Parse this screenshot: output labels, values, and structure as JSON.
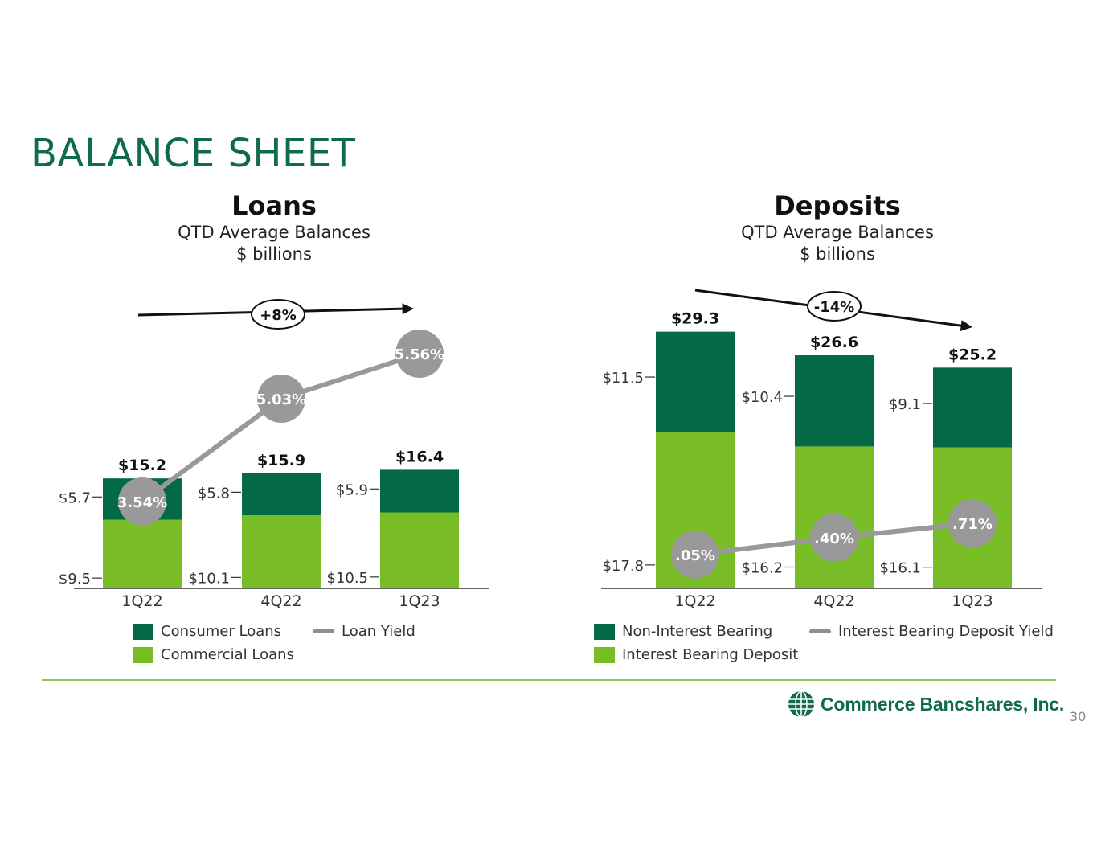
{
  "page": {
    "title": "BALANCE SHEET",
    "page_number": "30",
    "brand": "Commerce Bancshares, Inc."
  },
  "colors": {
    "title_green": "#0f6b48",
    "dark_green": "#046a45",
    "light_green": "#78bd25",
    "yield_gray": "#999999",
    "rule_green": "#8cc860"
  },
  "icons": {
    "brand_logo": "globe-icon"
  },
  "chart_data": [
    {
      "type": "bar",
      "stacked": true,
      "title": "Loans",
      "subtitle": [
        "QTD Average Balances",
        "$ billions"
      ],
      "categories": [
        "1Q22",
        "4Q22",
        "1Q23"
      ],
      "series": [
        {
          "name": "Commercial Loans",
          "values": [
            9.5,
            10.1,
            10.5
          ],
          "labels": [
            "$9.5",
            "$10.1",
            "$10.5"
          ],
          "color": "#78bd25"
        },
        {
          "name": "Consumer Loans",
          "values": [
            5.7,
            5.8,
            5.9
          ],
          "labels": [
            "$5.7",
            "$5.8",
            "$5.9"
          ],
          "color": "#046a45"
        }
      ],
      "totals": [
        "$15.2",
        "$15.9",
        "$16.4"
      ],
      "line": {
        "name": "Loan Yield",
        "values": [
          3.54,
          5.03,
          5.56
        ],
        "labels": [
          "3.54%",
          "5.03%",
          "5.56%"
        ]
      },
      "trend": {
        "label": "+8%",
        "direction": "up"
      }
    },
    {
      "type": "bar",
      "stacked": true,
      "title": "Deposits",
      "subtitle": [
        "QTD Average Balances",
        "$ billions"
      ],
      "categories": [
        "1Q22",
        "4Q22",
        "1Q23"
      ],
      "series": [
        {
          "name": "Interest Bearing Deposit",
          "values": [
            17.8,
            16.2,
            16.1
          ],
          "labels": [
            "$17.8",
            "$16.2",
            "$16.1"
          ],
          "color": "#78bd25"
        },
        {
          "name": "Non-Interest Bearing",
          "values": [
            11.5,
            10.4,
            9.1
          ],
          "labels": [
            "$11.5",
            "$10.4",
            "$9.1"
          ],
          "color": "#046a45"
        }
      ],
      "totals": [
        "$29.3",
        "$26.6",
        "$25.2"
      ],
      "line": {
        "name": "Interest Bearing Deposit Yield",
        "values": [
          0.05,
          0.4,
          0.71
        ],
        "labels": [
          ".05%",
          ".40%",
          ".71%"
        ]
      },
      "trend": {
        "label": "-14%",
        "direction": "down"
      }
    }
  ]
}
